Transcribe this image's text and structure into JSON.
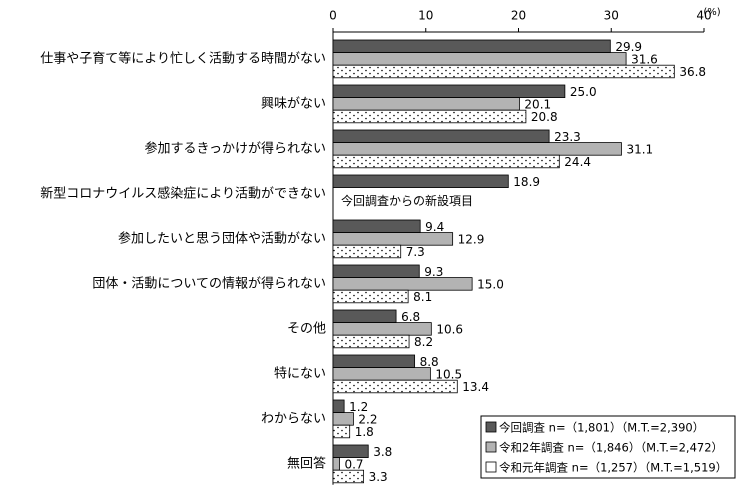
{
  "chart_data": {
    "type": "bar",
    "orientation": "horizontal",
    "xlabel": "(%)",
    "annotation": "今回調査からの新設項目",
    "categories": [
      "仕事や子育て等により忙しく活動する時間がない",
      "興味がない",
      "参加するきっかけが得られない",
      "新型コロナウイルス感染症により活動ができない",
      "参加したいと思う団体や活動がない",
      "団体・活動についての情報が得られない",
      "その他",
      "特にない",
      "わからない",
      "無回答"
    ],
    "series": [
      {
        "name": "今回調査 n=（1,801）（M.T.=2,390）",
        "color": "#595959",
        "fill_pattern": null,
        "values": [
          29.9,
          25.0,
          23.3,
          18.9,
          9.4,
          9.3,
          6.8,
          8.8,
          1.2,
          3.8
        ],
        "value_labels": [
          "29.9",
          "25.0",
          "23.3",
          "18.9",
          "9.4",
          "9.3",
          "6.8",
          "8.8",
          "1.2",
          "3.8"
        ]
      },
      {
        "name": "令和2年調査 n=（1,846）（M.T.=2,472）",
        "color": "#b3b3b3",
        "fill_pattern": null,
        "values": [
          31.6,
          20.1,
          31.1,
          null,
          12.9,
          15.0,
          10.6,
          10.5,
          2.2,
          0.7
        ],
        "value_labels": [
          "31.6",
          "20.1",
          "31.1",
          null,
          "12.9",
          "15.0",
          "10.6",
          "10.5",
          "2.2",
          "0.7"
        ]
      },
      {
        "name": "令和元年調査 n=（1,257）（M.T.=1,519）",
        "color": "#ffffff",
        "fill_pattern": "dots",
        "values": [
          36.8,
          20.8,
          24.4,
          null,
          7.3,
          8.1,
          8.2,
          13.4,
          1.8,
          3.3
        ],
        "value_labels": [
          "36.8",
          "20.8",
          "24.4",
          null,
          "7.3",
          "8.1",
          "8.2",
          "13.4",
          "1.8",
          "3.3"
        ]
      }
    ],
    "xlim": [
      0,
      40
    ],
    "xticks": [
      0,
      10,
      20,
      30,
      40
    ],
    "grid": false,
    "legend": "lower right"
  }
}
